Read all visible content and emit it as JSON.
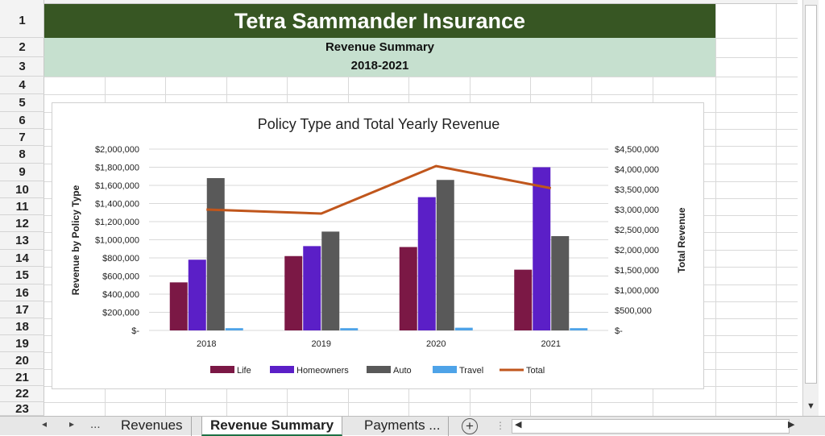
{
  "sheet": {
    "title": "Tetra Sammander Insurance",
    "subtitle": "Revenue Summary",
    "period": "2018-2021",
    "row_numbers": [
      "1",
      "2",
      "3",
      "4",
      "5",
      "6",
      "7",
      "8",
      "9",
      "10",
      "11",
      "12",
      "13",
      "14",
      "15",
      "16",
      "17",
      "18",
      "19",
      "20",
      "21",
      "22",
      "23"
    ]
  },
  "tabs": {
    "prev_label": "◂",
    "next_label": "▸",
    "more_label": "...",
    "items": [
      {
        "label": "Revenues"
      },
      {
        "label": "Revenue Summary"
      },
      {
        "label": "Payments  ..."
      }
    ],
    "add_label": "+"
  },
  "colors": {
    "title_band": "#375623",
    "sub_band": "#c6e0cf",
    "life": "#7b1845",
    "homeowners": "#5b1fc7",
    "auto": "#595959",
    "travel": "#4ea3e8",
    "total": "#c0561c"
  },
  "chart_data": {
    "type": "bar",
    "title": "Policy Type and Total Yearly Revenue",
    "ylabel": "Revenue by Policy Type",
    "y2label": "Total Revenue",
    "categories": [
      "2018",
      "2019",
      "2020",
      "2021"
    ],
    "ylim": [
      0,
      2000000
    ],
    "y2lim": [
      0,
      4500000
    ],
    "yticks": [
      "$-",
      "$200,000",
      "$400,000",
      "$600,000",
      "$800,000",
      "$1,000,000",
      "$1,200,000",
      "$1,400,000",
      "$1,600,000",
      "$1,800,000",
      "$2,000,000"
    ],
    "y2ticks": [
      "$-",
      "$500,000",
      "$1,000,000",
      "$1,500,000",
      "$2,000,000",
      "$2,500,000",
      "$3,000,000",
      "$3,500,000",
      "$4,000,000",
      "$4,500,000"
    ],
    "series": [
      {
        "name": "Life",
        "values": [
          530000,
          820000,
          920000,
          670000
        ]
      },
      {
        "name": "Homeowners",
        "values": [
          780000,
          930000,
          1470000,
          1800000
        ]
      },
      {
        "name": "Auto",
        "values": [
          1680000,
          1090000,
          1660000,
          1040000
        ]
      },
      {
        "name": "Travel",
        "values": [
          25000,
          25000,
          30000,
          25000
        ]
      }
    ],
    "line_series": {
      "name": "Total",
      "axis": "secondary",
      "values": [
        3000000,
        2900000,
        4080000,
        3530000
      ]
    },
    "legend": "bottom",
    "grid": true
  }
}
